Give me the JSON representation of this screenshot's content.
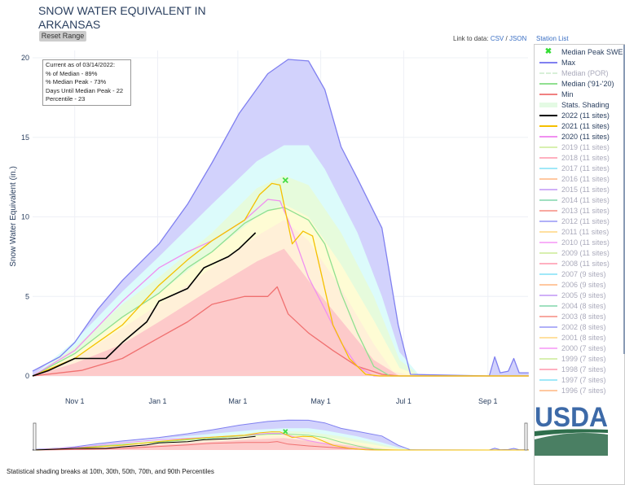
{
  "header": {
    "title_line1": "SNOW WATER EQUIVALENT IN",
    "title_line2": "ARKANSAS",
    "reset_label": "Reset Range",
    "link_prefix": "Link to data: ",
    "csv": "CSV",
    "sep": " / ",
    "json": "JSON",
    "station_list": "Station List"
  },
  "info": {
    "line1": "Current as of 03/14/2022:",
    "line2": "% of Median - 89%",
    "line3": "% Median Peak - 73%",
    "line4": "Days Until Median Peak - 22",
    "line5": "Percentile - 23"
  },
  "footnote": "Statistical shading breaks at 10th, 30th, 50th, 70th, and 90th Percentiles",
  "logo": "USDA",
  "legend": [
    {
      "label": "Median Peak SWE",
      "color": "#33dd33",
      "marker": "x"
    },
    {
      "label": "Max",
      "color": "#8080f0"
    },
    {
      "label": "Median (POR)",
      "color": "#d8f0d8",
      "dim": true,
      "dash": true
    },
    {
      "label": "Median ('91-'20)",
      "color": "#90e090"
    },
    {
      "label": "Min",
      "color": "#f08080"
    },
    {
      "label": "Stats. Shading",
      "color": "#e4fae4",
      "thick": true
    },
    {
      "label": "2022 (11 sites)",
      "color": "#000000"
    },
    {
      "label": "2021 (11 sites)",
      "color": "#f5c000"
    },
    {
      "label": "2020 (11 sites)",
      "color": "#f090f0"
    },
    {
      "label": "2019 (11 sites)",
      "color": "#d8f0b0",
      "dim": true
    },
    {
      "label": "2018 (11 sites)",
      "color": "#ffb0c0",
      "dim": true
    },
    {
      "label": "2017 (11 sites)",
      "color": "#a0e8f8",
      "dim": true
    },
    {
      "label": "2016 (11 sites)",
      "color": "#ffc8a0",
      "dim": true
    },
    {
      "label": "2015 (11 sites)",
      "color": "#d0b0f8",
      "dim": true
    },
    {
      "label": "2014 (11 sites)",
      "color": "#a0e0c0",
      "dim": true
    },
    {
      "label": "2013 (11 sites)",
      "color": "#f8a8a0",
      "dim": true
    },
    {
      "label": "2012 (11 sites)",
      "color": "#b0b0f8",
      "dim": true
    },
    {
      "label": "2011 (11 sites)",
      "color": "#ffe0a0",
      "dim": true
    },
    {
      "label": "2010 (11 sites)",
      "color": "#f8b0f8",
      "dim": true
    },
    {
      "label": "2009 (11 sites)",
      "color": "#d8f0b0",
      "dim": true
    },
    {
      "label": "2008 (11 sites)",
      "color": "#ffb0c0",
      "dim": true
    },
    {
      "label": "2007 (9 sites)",
      "color": "#a0e8f8",
      "dim": true
    },
    {
      "label": "2006 (9 sites)",
      "color": "#ffc8a0",
      "dim": true
    },
    {
      "label": "2005 (9 sites)",
      "color": "#d0b0f8",
      "dim": true
    },
    {
      "label": "2004 (8 sites)",
      "color": "#a0e0c0",
      "dim": true
    },
    {
      "label": "2003 (8 sites)",
      "color": "#f8a8a0",
      "dim": true
    },
    {
      "label": "2002 (8 sites)",
      "color": "#b0b0f8",
      "dim": true
    },
    {
      "label": "2001 (8 sites)",
      "color": "#ffe0a0",
      "dim": true
    },
    {
      "label": "2000 (7 sites)",
      "color": "#f8b0f8",
      "dim": true
    },
    {
      "label": "1999 (7 sites)",
      "color": "#d8f0b0",
      "dim": true
    },
    {
      "label": "1998 (7 sites)",
      "color": "#ffb0c0",
      "dim": true
    },
    {
      "label": "1997 (7 sites)",
      "color": "#a0e8f8",
      "dim": true
    },
    {
      "label": "1996 (7 sites)",
      "color": "#ffc8a0",
      "dim": true
    }
  ],
  "chart_data": {
    "type": "area",
    "title": "SNOW WATER EQUIVALENT IN ARKANSAS",
    "xlabel": "",
    "ylabel": "Snow Water Equivalent (in.)",
    "x_unit": "days since Oct 1",
    "xlim": [
      0,
      365
    ],
    "ylim": [
      0,
      20
    ],
    "yticks": [
      0,
      5,
      10,
      15,
      20
    ],
    "xticks": [
      {
        "day": 31,
        "label": "Nov 1"
      },
      {
        "day": 92,
        "label": "Jan 1"
      },
      {
        "day": 151,
        "label": "Mar 1"
      },
      {
        "day": 212,
        "label": "May 1"
      },
      {
        "day": 273,
        "label": "Jul 1"
      },
      {
        "day": 335,
        "label": "Sep 1"
      }
    ],
    "median_peak": {
      "day": 186,
      "value": 12.3
    },
    "bands": [
      {
        "name": "Max",
        "color": "#d2d2fc",
        "points": [
          [
            0,
            0.3
          ],
          [
            20,
            1.2
          ],
          [
            31,
            2.1
          ],
          [
            48,
            4.2
          ],
          [
            66,
            6
          ],
          [
            93,
            8.3
          ],
          [
            114,
            10.8
          ],
          [
            132,
            13.4
          ],
          [
            152,
            16.5
          ],
          [
            173,
            19
          ],
          [
            188,
            19.9
          ],
          [
            203,
            19.8
          ],
          [
            215,
            18
          ],
          [
            227,
            14.4
          ],
          [
            239,
            12.4
          ],
          [
            257,
            9.3
          ],
          [
            269,
            3.2
          ],
          [
            278,
            0.1
          ],
          [
            336,
            0
          ],
          [
            340,
            1.2
          ],
          [
            344,
            0.2
          ],
          [
            350,
            0.3
          ],
          [
            354,
            1.1
          ],
          [
            358,
            0.2
          ],
          [
            365,
            0.2
          ]
        ]
      },
      {
        "name": "90th",
        "color": "#dcfbfb",
        "points": [
          [
            0,
            0
          ],
          [
            31,
            2.2
          ],
          [
            66,
            5.3
          ],
          [
            93,
            7.5
          ],
          [
            132,
            10.8
          ],
          [
            165,
            13.5
          ],
          [
            185,
            14.5
          ],
          [
            203,
            14.5
          ],
          [
            215,
            13
          ],
          [
            239,
            9
          ],
          [
            257,
            5
          ],
          [
            270,
            1.5
          ],
          [
            285,
            0
          ],
          [
            365,
            0
          ]
        ]
      },
      {
        "name": "70th",
        "color": "#e6fbdc",
        "points": [
          [
            0,
            0
          ],
          [
            31,
            1.8
          ],
          [
            66,
            4.5
          ],
          [
            93,
            6.2
          ],
          [
            132,
            9
          ],
          [
            165,
            11.8
          ],
          [
            185,
            12.6
          ],
          [
            203,
            12
          ],
          [
            227,
            9
          ],
          [
            251,
            5
          ],
          [
            270,
            1
          ],
          [
            285,
            0
          ],
          [
            365,
            0
          ]
        ]
      },
      {
        "name": "50th",
        "color": "#fefcd4",
        "points": [
          [
            0,
            0
          ],
          [
            31,
            1.4
          ],
          [
            66,
            3.7
          ],
          [
            93,
            5.2
          ],
          [
            132,
            7.8
          ],
          [
            165,
            10
          ],
          [
            185,
            10.8
          ],
          [
            203,
            10
          ],
          [
            227,
            7
          ],
          [
            251,
            3.5
          ],
          [
            270,
            0.5
          ],
          [
            285,
            0
          ],
          [
            365,
            0
          ]
        ]
      },
      {
        "name": "30th",
        "color": "#fff0d8",
        "points": [
          [
            0,
            0
          ],
          [
            31,
            1.1
          ],
          [
            66,
            3
          ],
          [
            93,
            4.5
          ],
          [
            132,
            6.8
          ],
          [
            165,
            8.8
          ],
          [
            185,
            9.8
          ],
          [
            203,
            8.5
          ],
          [
            227,
            5.5
          ],
          [
            251,
            2
          ],
          [
            265,
            0.3
          ],
          [
            280,
            0
          ],
          [
            365,
            0
          ]
        ]
      },
      {
        "name": "10th",
        "color": "#fdcaca",
        "points": [
          [
            0,
            0
          ],
          [
            31,
            0.8
          ],
          [
            66,
            2
          ],
          [
            93,
            3.4
          ],
          [
            132,
            5.5
          ],
          [
            165,
            7.2
          ],
          [
            185,
            8
          ],
          [
            203,
            6
          ],
          [
            227,
            3.5
          ],
          [
            251,
            1
          ],
          [
            270,
            0
          ],
          [
            365,
            0
          ]
        ]
      }
    ],
    "series": [
      {
        "name": "Max",
        "color": "#8080f0",
        "width": 1.3,
        "points": [
          [
            0,
            0.3
          ],
          [
            20,
            1.2
          ],
          [
            31,
            2.1
          ],
          [
            48,
            4.2
          ],
          [
            66,
            6
          ],
          [
            93,
            8.3
          ],
          [
            114,
            10.8
          ],
          [
            132,
            13.4
          ],
          [
            152,
            16.5
          ],
          [
            173,
            19
          ],
          [
            188,
            19.9
          ],
          [
            203,
            19.8
          ],
          [
            215,
            18
          ],
          [
            227,
            14.4
          ],
          [
            239,
            12.4
          ],
          [
            257,
            9.3
          ],
          [
            269,
            3.2
          ],
          [
            278,
            0.1
          ],
          [
            336,
            0
          ],
          [
            340,
            1.2
          ],
          [
            344,
            0.2
          ],
          [
            350,
            0.3
          ],
          [
            354,
            1.1
          ],
          [
            358,
            0.2
          ],
          [
            365,
            0.2
          ]
        ]
      },
      {
        "name": "Min",
        "color": "#f07070",
        "width": 1.3,
        "points": [
          [
            0,
            0
          ],
          [
            36,
            0.35
          ],
          [
            66,
            1.1
          ],
          [
            93,
            2.4
          ],
          [
            114,
            3.4
          ],
          [
            132,
            4.5
          ],
          [
            156,
            5
          ],
          [
            173,
            5
          ],
          [
            180,
            5.6
          ],
          [
            188,
            3.9
          ],
          [
            203,
            2.7
          ],
          [
            221,
            1.6
          ],
          [
            239,
            0.6
          ],
          [
            257,
            0.1
          ],
          [
            270,
            0
          ],
          [
            365,
            0
          ]
        ]
      },
      {
        "name": "Median ('91-'20)",
        "color": "#90e090",
        "width": 1.3,
        "points": [
          [
            0,
            0
          ],
          [
            31,
            1.4
          ],
          [
            66,
            3.7
          ],
          [
            93,
            5.2
          ],
          [
            114,
            6.8
          ],
          [
            132,
            7.8
          ],
          [
            156,
            9.6
          ],
          [
            173,
            10.4
          ],
          [
            185,
            10.6
          ],
          [
            203,
            9.8
          ],
          [
            215,
            8.3
          ],
          [
            227,
            5.2
          ],
          [
            239,
            2.7
          ],
          [
            251,
            0.6
          ],
          [
            263,
            0
          ],
          [
            365,
            0
          ]
        ]
      },
      {
        "name": "2020 (11 sites)",
        "color": "#f090f0",
        "width": 1.3,
        "points": [
          [
            0,
            0
          ],
          [
            31,
            1.6
          ],
          [
            66,
            4.7
          ],
          [
            93,
            6.8
          ],
          [
            114,
            7.8
          ],
          [
            132,
            8.5
          ],
          [
            156,
            9.8
          ],
          [
            173,
            11.1
          ],
          [
            182,
            11
          ],
          [
            188,
            9.8
          ],
          [
            203,
            6.2
          ],
          [
            215,
            4.2
          ],
          [
            227,
            2.1
          ],
          [
            239,
            0.6
          ],
          [
            251,
            0
          ],
          [
            365,
            0
          ]
        ]
      },
      {
        "name": "2021 (11 sites)",
        "color": "#f5c000",
        "width": 1.3,
        "points": [
          [
            0,
            0
          ],
          [
            31,
            1.1
          ],
          [
            66,
            3.2
          ],
          [
            93,
            5.7
          ],
          [
            114,
            7.3
          ],
          [
            132,
            8.5
          ],
          [
            156,
            9.8
          ],
          [
            167,
            11.4
          ],
          [
            176,
            12.1
          ],
          [
            182,
            12
          ],
          [
            191,
            8.3
          ],
          [
            199,
            9.1
          ],
          [
            206,
            8.8
          ],
          [
            213,
            6.2
          ],
          [
            221,
            3.2
          ],
          [
            233,
            1.1
          ],
          [
            245,
            0.1
          ],
          [
            255,
            0
          ],
          [
            365,
            0
          ]
        ]
      },
      {
        "name": "2022 (11 sites)",
        "color": "#000000",
        "width": 1.6,
        "points": [
          [
            0,
            0
          ],
          [
            12,
            0.35
          ],
          [
            31,
            1.1
          ],
          [
            54,
            1.1
          ],
          [
            66,
            2.1
          ],
          [
            84,
            3.4
          ],
          [
            93,
            4.7
          ],
          [
            114,
            5.5
          ],
          [
            126,
            6.8
          ],
          [
            144,
            7.5
          ],
          [
            152,
            8
          ],
          [
            164,
            9.0
          ]
        ]
      }
    ]
  }
}
